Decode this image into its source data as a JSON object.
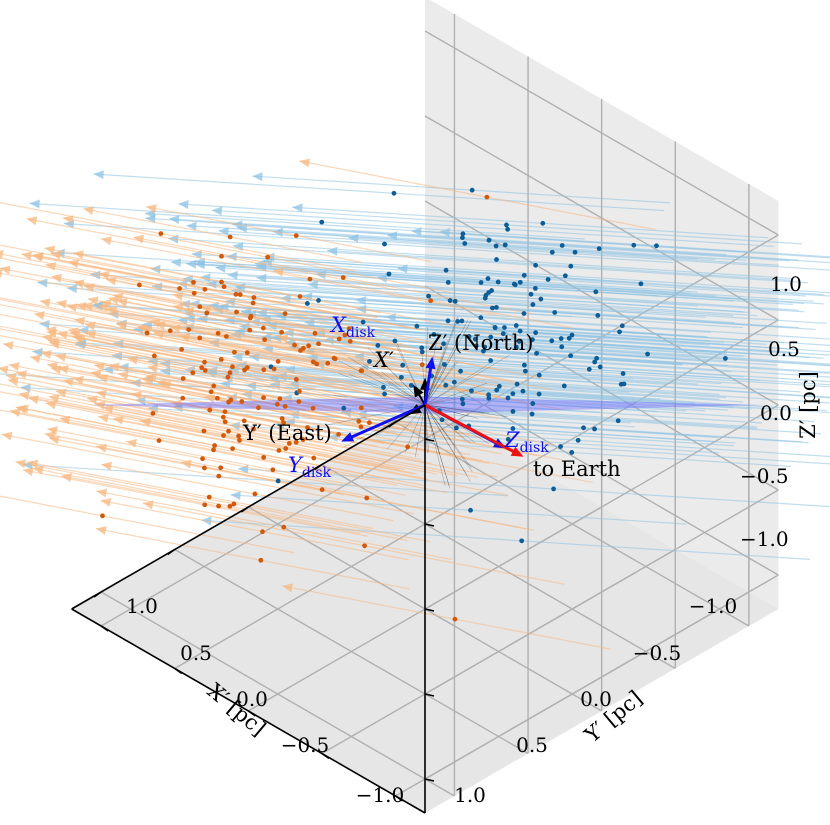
{
  "chart_data": {
    "type": "scatter",
    "projection": "3d",
    "view": {
      "elevation_deg": 35.26,
      "azimuth_deg": 45
    },
    "xlabel": "X′ [pc]",
    "ylabel": "Y′ [pc]",
    "zlabel": "Z′ [pc]",
    "xlim": [
      -1.2,
      1.2
    ],
    "ylim": [
      -1.2,
      1.2
    ],
    "zlim": [
      -1.2,
      1.2
    ],
    "grid": true,
    "x_ticks": [
      "1.0",
      "0.5",
      "0.0",
      "−0.5",
      "−1.0"
    ],
    "y_ticks": [
      "−1.0",
      "−0.5",
      "0.0",
      "0.5",
      "1.0"
    ],
    "z_ticks": [
      "1.0",
      "0.5",
      "0.0",
      "−0.5",
      "−1.0"
    ],
    "tick_values": [
      1.0,
      0.5,
      0.0,
      -0.5,
      -1.0
    ],
    "disk_plane": {
      "color": "#6b6bff",
      "alpha": 0.45,
      "normal": [
        0.6,
        -0.6,
        -0.5
      ]
    },
    "series": [
      {
        "color": "#1f77b4",
        "n_points": 150,
        "center": [
          -0.15,
          -0.35,
          0.5
        ],
        "spread": [
          0.35,
          0.35,
          0.3
        ],
        "arrow": [
          1.35,
          0.45,
          0.55
        ]
      },
      {
        "color": "#ff7f0e",
        "n_points": 140,
        "center": [
          0.55,
          0.55,
          0.1
        ],
        "spread": [
          0.35,
          0.3,
          0.3
        ],
        "arrow": [
          1.1,
          0.1,
          0.7
        ]
      }
    ],
    "vectors": [
      {
        "label": "X′",
        "color": "#000000",
        "dir": [
          0.0,
          0.08,
          0.08
        ]
      },
      {
        "label": "Z′ (North)",
        "color": "#000000",
        "dir": [
          0,
          0,
          0.16
        ]
      },
      {
        "label": "Y′ (East)",
        "color": "#000000",
        "dir": [
          0.11,
          0.0,
          0.0
        ]
      },
      {
        "label": "X_disk",
        "color": "#1010ee",
        "dir": [
          -0.05,
          0.0,
          0.26
        ]
      },
      {
        "label": "Y_disk",
        "color": "#1010ee",
        "dir": [
          0.45,
          0.12,
          -0.05
        ]
      },
      {
        "label": "Z_disk",
        "color": "#1010ee",
        "dir": [
          -0.2,
          -0.35,
          -0.18
        ]
      },
      {
        "label": "to Earth",
        "color": "#ee1111",
        "dir": [
          -0.25,
          -0.42,
          -0.22
        ]
      }
    ],
    "annotations": [
      {
        "text": "X",
        "sub": "disk",
        "color": "#1010ee",
        "italic": true
      },
      {
        "text": "X′",
        "color": "#000000"
      },
      {
        "text": "Z′ (North)",
        "color": "#000000"
      },
      {
        "text": "Y′ (East)",
        "color": "#000000"
      },
      {
        "text": "Y",
        "sub": "disk",
        "color": "#1010ee",
        "italic": true
      },
      {
        "text": "Z",
        "sub": "disk",
        "color": "#1010ee",
        "italic": true
      },
      {
        "text": "to Earth",
        "color": "#000000"
      }
    ]
  }
}
